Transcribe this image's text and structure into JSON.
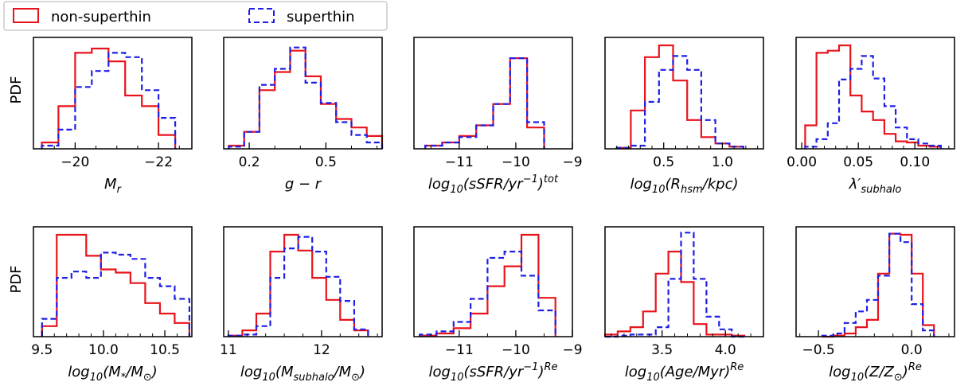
{
  "legend": {
    "items": [
      {
        "label": "non-superthin",
        "color": "#e8141c",
        "style": "solid"
      },
      {
        "label": "superthin",
        "color": "#1f1fe6",
        "style": "dashed"
      }
    ]
  },
  "ylabel": "PDF",
  "chart_data": [
    {
      "type": "histogram",
      "xlabel": "M_r",
      "xlabel_parts": [
        [
          "M",
          ""
        ],
        [
          "r",
          "sub"
        ]
      ],
      "xlim": [
        -19.0,
        -22.8
      ],
      "ylim": [
        0,
        1
      ],
      "ticks": [
        {
          "v": -20,
          "label": "−20"
        },
        {
          "v": -22,
          "label": "−22"
        }
      ],
      "minor_ticks": [
        -19.5,
        -20.5,
        -21,
        -21.5,
        -22.5
      ],
      "edges": [
        -19.2,
        -19.6,
        -20.0,
        -20.4,
        -20.8,
        -21.2,
        -21.6,
        -22.0,
        -22.4
      ],
      "series": [
        {
          "name": "non-superthin",
          "values": [
            0.06,
            0.4,
            0.9,
            0.94,
            0.82,
            0.5,
            0.4,
            0.13
          ]
        },
        {
          "name": "superthin",
          "values": [
            0.03,
            0.18,
            0.58,
            0.73,
            0.9,
            0.86,
            0.55,
            0.29
          ]
        }
      ]
    },
    {
      "type": "histogram",
      "xlabel": "g − r",
      "xlabel_parts": [
        [
          "g − r",
          ""
        ]
      ],
      "xlim": [
        0.1,
        0.72
      ],
      "ylim": [
        0,
        1
      ],
      "ticks": [
        {
          "v": 0.2,
          "label": "0.2"
        },
        {
          "v": 0.5,
          "label": "0.5"
        }
      ],
      "minor_ticks": [
        0.3,
        0.4,
        0.6,
        0.7
      ],
      "edges": [
        0.12,
        0.18,
        0.24,
        0.3,
        0.36,
        0.42,
        0.48,
        0.54,
        0.6,
        0.66,
        0.72
      ],
      "series": [
        {
          "name": "non-superthin",
          "values": [
            0.03,
            0.16,
            0.55,
            0.72,
            0.92,
            0.68,
            0.42,
            0.28,
            0.2,
            0.12
          ]
        },
        {
          "name": "superthin",
          "values": [
            0.02,
            0.16,
            0.6,
            0.75,
            0.95,
            0.62,
            0.43,
            0.25,
            0.13,
            0.06
          ]
        }
      ]
    },
    {
      "type": "histogram",
      "xlabel": "log10(sSFR/yr−1)tot",
      "xlabel_parts": [
        [
          "log",
          ""
        ],
        [
          "10",
          "sub"
        ],
        [
          "(sSFR/yr",
          ""
        ],
        [
          "−1",
          "sup"
        ],
        [
          ")",
          ""
        ],
        [
          "tot",
          "sup"
        ]
      ],
      "xlim": [
        -11.8,
        -9.0
      ],
      "ylim": [
        0,
        1
      ],
      "ticks": [
        {
          "v": -11,
          "label": "−11"
        },
        {
          "v": -10,
          "label": "−10"
        },
        {
          "v": -9,
          "label": "−9"
        }
      ],
      "minor_ticks": [
        -11.5,
        -10.5,
        -9.5
      ],
      "edges": [
        -11.6,
        -11.3,
        -11.0,
        -10.7,
        -10.4,
        -10.1,
        -9.8,
        -9.5
      ],
      "series": [
        {
          "name": "non-superthin",
          "values": [
            0.03,
            0.06,
            0.12,
            0.22,
            0.42,
            0.85,
            0.2
          ]
        },
        {
          "name": "superthin",
          "values": [
            0.03,
            0.06,
            0.11,
            0.22,
            0.42,
            0.85,
            0.25
          ]
        }
      ]
    },
    {
      "type": "histogram",
      "xlabel": "log10(Rhsm/kpc)",
      "xlabel_parts": [
        [
          "log",
          ""
        ],
        [
          "10",
          "sub"
        ],
        [
          "(R",
          ""
        ],
        [
          "hsm",
          "sub"
        ],
        [
          "/kpc)",
          ""
        ]
      ],
      "xlim": [
        0.0,
        1.35
      ],
      "ylim": [
        0,
        1
      ],
      "ticks": [
        {
          "v": 0.5,
          "label": "0.5"
        },
        {
          "v": 1.0,
          "label": "1.0"
        }
      ],
      "minor_ticks": [
        0.1,
        0.2,
        0.3,
        0.4,
        0.6,
        0.7,
        0.8,
        0.9,
        1.1,
        1.2,
        1.3
      ],
      "edges": [
        0.1,
        0.22,
        0.34,
        0.46,
        0.58,
        0.7,
        0.82,
        0.94,
        1.06,
        1.18
      ],
      "series": [
        {
          "name": "non-superthin",
          "values": [
            0.01,
            0.36,
            0.86,
            0.97,
            0.64,
            0.27,
            0.11,
            0.05,
            0.02
          ]
        },
        {
          "name": "superthin",
          "values": [
            0.01,
            0.03,
            0.44,
            0.74,
            0.87,
            0.74,
            0.27,
            0.05,
            0.02
          ]
        }
      ]
    },
    {
      "type": "histogram",
      "xlabel": "λ′subhalo",
      "xlabel_parts": [
        [
          "λ′",
          ""
        ],
        [
          "subhalo",
          "sub"
        ]
      ],
      "xlim": [
        -0.005,
        0.135
      ],
      "ylim": [
        0,
        1
      ],
      "ticks": [
        {
          "v": 0.0,
          "label": "0.00"
        },
        {
          "v": 0.05,
          "label": "0.05"
        },
        {
          "v": 0.1,
          "label": "0.10"
        }
      ],
      "minor_ticks": [
        0.01,
        0.02,
        0.03,
        0.04,
        0.06,
        0.07,
        0.08,
        0.09,
        0.11,
        0.12,
        0.13
      ],
      "edges": [
        0.003,
        0.013,
        0.023,
        0.033,
        0.043,
        0.053,
        0.063,
        0.073,
        0.083,
        0.093,
        0.103,
        0.113,
        0.123
      ],
      "series": [
        {
          "name": "non-superthin",
          "values": [
            0.22,
            0.9,
            0.92,
            0.97,
            0.5,
            0.35,
            0.27,
            0.14,
            0.07,
            0.06,
            0.03,
            0.02
          ]
        },
        {
          "name": "superthin",
          "values": [
            0.02,
            0.09,
            0.24,
            0.65,
            0.75,
            0.87,
            0.66,
            0.4,
            0.2,
            0.09,
            0.05,
            0.03
          ]
        }
      ]
    },
    {
      "type": "histogram",
      "xlabel": "log10(M*/M⊙)",
      "xlabel_parts": [
        [
          "log",
          ""
        ],
        [
          "10",
          "sub"
        ],
        [
          "(M",
          ""
        ],
        [
          "*",
          "sub"
        ],
        [
          "/M",
          ""
        ],
        [
          "⊙",
          "sub"
        ],
        [
          ")",
          ""
        ]
      ],
      "xlim": [
        9.43,
        10.72
      ],
      "ylim": [
        0,
        1
      ],
      "ticks": [
        {
          "v": 9.5,
          "label": "9.5"
        },
        {
          "v": 10.0,
          "label": "10.0"
        },
        {
          "v": 10.5,
          "label": "10.5"
        }
      ],
      "minor_ticks": [
        9.6,
        9.7,
        9.8,
        9.9,
        10.1,
        10.2,
        10.3,
        10.4,
        10.6,
        10.7
      ],
      "edges": [
        9.5,
        9.62,
        9.74,
        9.86,
        9.98,
        10.1,
        10.22,
        10.34,
        10.46,
        10.58,
        10.7
      ],
      "series": [
        {
          "name": "non-superthin",
          "values": [
            0.1,
            0.97,
            0.97,
            0.77,
            0.64,
            0.61,
            0.51,
            0.32,
            0.22,
            0.13
          ]
        },
        {
          "name": "superthin",
          "values": [
            0.17,
            0.56,
            0.62,
            0.56,
            0.8,
            0.78,
            0.74,
            0.56,
            0.48,
            0.36
          ]
        }
      ]
    },
    {
      "type": "histogram",
      "xlabel": "log10(Msubhalo/M⊙)",
      "xlabel_parts": [
        [
          "log",
          ""
        ],
        [
          "10",
          "sub"
        ],
        [
          "(M",
          ""
        ],
        [
          "subhalo",
          "sub"
        ],
        [
          "/M",
          ""
        ],
        [
          "⊙",
          "sub"
        ],
        [
          ")",
          ""
        ]
      ],
      "xlim": [
        10.95,
        12.65
      ],
      "ylim": [
        0,
        1
      ],
      "ticks": [
        {
          "v": 11,
          "label": "11"
        },
        {
          "v": 12,
          "label": "12"
        }
      ],
      "minor_ticks": [
        11.2,
        11.4,
        11.6,
        11.8,
        12.2,
        12.4,
        12.6
      ],
      "edges": [
        11.0,
        11.15,
        11.3,
        11.45,
        11.6,
        11.75,
        11.9,
        12.05,
        12.2,
        12.35,
        12.5
      ],
      "series": [
        {
          "name": "non-superthin",
          "values": [
            0.01,
            0.06,
            0.22,
            0.81,
            0.97,
            0.82,
            0.56,
            0.35,
            0.16,
            0.06
          ]
        },
        {
          "name": "superthin",
          "values": [
            0.01,
            0.02,
            0.1,
            0.56,
            0.84,
            0.95,
            0.81,
            0.57,
            0.34,
            0.07
          ]
        }
      ]
    },
    {
      "type": "histogram",
      "xlabel": "log10(sSFR/yr−1)Re",
      "xlabel_parts": [
        [
          "log",
          ""
        ],
        [
          "10",
          "sub"
        ],
        [
          "(sSFR/yr",
          ""
        ],
        [
          "−1",
          "sup"
        ],
        [
          ")",
          ""
        ],
        [
          "Re",
          "sup"
        ]
      ],
      "xlim": [
        -11.8,
        -9.0
      ],
      "ylim": [
        0,
        1
      ],
      "ticks": [
        {
          "v": -11,
          "label": "−11"
        },
        {
          "v": -10,
          "label": "−10"
        },
        {
          "v": -9,
          "label": "−9"
        }
      ],
      "minor_ticks": [
        -11.5,
        -10.5,
        -9.5
      ],
      "edges": [
        -11.7,
        -11.4,
        -11.1,
        -10.8,
        -10.5,
        -10.2,
        -9.9,
        -9.6,
        -9.3
      ],
      "series": [
        {
          "name": "non-superthin",
          "values": [
            0.01,
            0.03,
            0.08,
            0.22,
            0.48,
            0.67,
            0.97,
            0.37
          ]
        },
        {
          "name": "superthin",
          "values": [
            0.02,
            0.05,
            0.14,
            0.36,
            0.75,
            0.81,
            0.58,
            0.25
          ]
        }
      ]
    },
    {
      "type": "histogram",
      "xlabel": "log10(Age/Myr)Re",
      "xlabel_parts": [
        [
          "log",
          ""
        ],
        [
          "10",
          "sub"
        ],
        [
          "(Age/Myr)",
          ""
        ],
        [
          "Re",
          "sup"
        ]
      ],
      "xlim": [
        3.05,
        4.3
      ],
      "ylim": [
        0,
        1
      ],
      "ticks": [
        {
          "v": 3.5,
          "label": "3.5"
        },
        {
          "v": 4.0,
          "label": "4.0"
        }
      ],
      "minor_ticks": [
        3.1,
        3.2,
        3.3,
        3.4,
        3.6,
        3.7,
        3.8,
        3.9,
        4.1,
        4.2
      ],
      "edges": [
        3.05,
        3.15,
        3.25,
        3.35,
        3.45,
        3.55,
        3.65,
        3.75,
        3.85,
        3.95,
        4.05,
        4.15
      ],
      "series": [
        {
          "name": "non-superthin",
          "values": [
            0.02,
            0.05,
            0.09,
            0.24,
            0.6,
            0.81,
            0.52,
            0.12,
            0.02,
            0.02,
            0.01
          ]
        },
        {
          "name": "superthin",
          "values": [
            0.0,
            0.01,
            0.02,
            0.02,
            0.09,
            0.55,
            0.99,
            0.55,
            0.19,
            0.07,
            0.0
          ]
        }
      ]
    },
    {
      "type": "histogram",
      "xlabel": "log10(Z/Z⊙)Re",
      "xlabel_parts": [
        [
          "log",
          ""
        ],
        [
          "10",
          "sub"
        ],
        [
          "(Z/Z",
          ""
        ],
        [
          "⊙",
          "sub"
        ],
        [
          ")",
          ""
        ],
        [
          "Re",
          "sup"
        ]
      ],
      "xlim": [
        -0.62,
        0.23
      ],
      "ylim": [
        0,
        1
      ],
      "ticks": [
        {
          "v": -0.5,
          "label": "−0.5"
        },
        {
          "v": 0.0,
          "label": "0.0"
        }
      ],
      "minor_ticks": [
        -0.6,
        -0.4,
        -0.3,
        -0.2,
        -0.1,
        0.1,
        0.2
      ],
      "edges": [
        -0.48,
        -0.42,
        -0.36,
        -0.3,
        -0.24,
        -0.18,
        -0.12,
        -0.06,
        0.0,
        0.06,
        0.12
      ],
      "series": [
        {
          "name": "non-superthin",
          "values": [
            0.0,
            0.01,
            0.03,
            0.09,
            0.16,
            0.6,
            0.98,
            0.97,
            0.6,
            0.11
          ]
        },
        {
          "name": "superthin",
          "values": [
            0.01,
            0.03,
            0.13,
            0.24,
            0.35,
            0.58,
            0.98,
            0.9,
            0.31,
            0.06
          ]
        }
      ]
    }
  ]
}
